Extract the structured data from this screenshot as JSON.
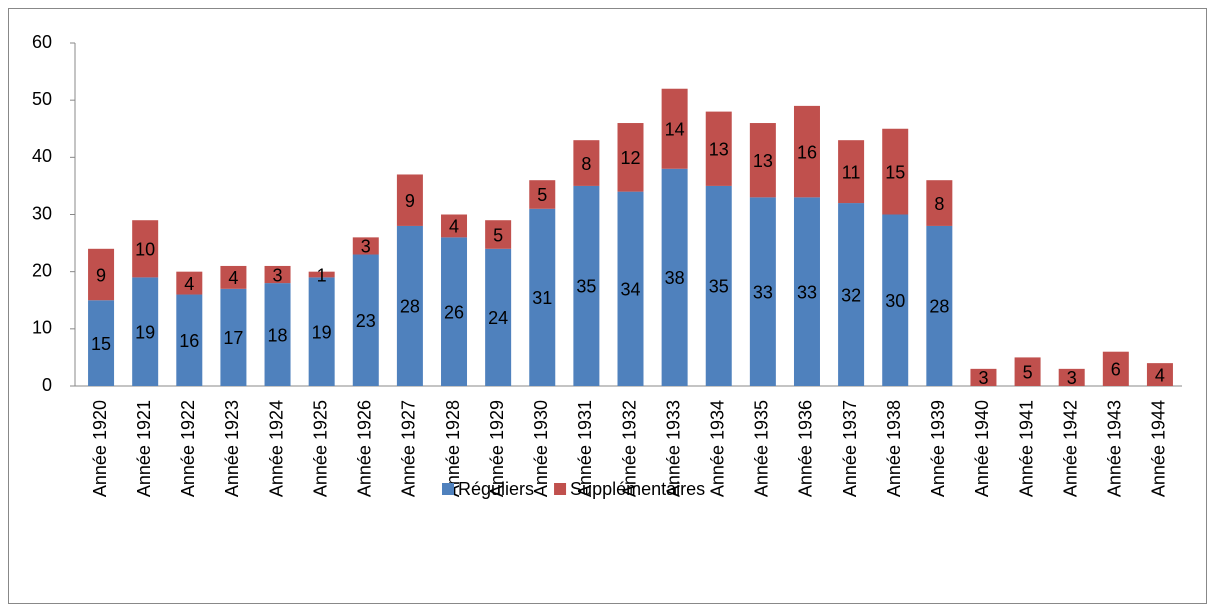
{
  "chart_data": {
    "type": "bar",
    "stacked": true,
    "categories": [
      "Année 1920",
      "Année 1921",
      "Année 1922",
      "Année 1923",
      "Année 1924",
      "Année 1925",
      "Année 1926",
      "Année 1927",
      "Année 1928",
      "Année 1929",
      "Année 1930",
      "Année 1931",
      "Année 1932",
      "Année 1933",
      "Année 1934",
      "Année 1935",
      "Année 1936",
      "Année 1937",
      "Année 1938",
      "Année 1939",
      "Année 1940",
      "Année 1941",
      "Année 1942",
      "Année 1943",
      "Année 1944"
    ],
    "series": [
      {
        "name": "Réguliers",
        "color": "#4f81bd",
        "values": [
          15,
          19,
          16,
          17,
          18,
          19,
          23,
          28,
          26,
          24,
          31,
          35,
          34,
          38,
          35,
          33,
          33,
          32,
          30,
          28,
          null,
          null,
          null,
          null,
          null
        ]
      },
      {
        "name": "Supplémentaires",
        "color": "#c0504d",
        "values": [
          9,
          10,
          4,
          4,
          3,
          1,
          3,
          9,
          4,
          5,
          5,
          8,
          12,
          14,
          13,
          13,
          16,
          11,
          15,
          8,
          3,
          5,
          3,
          6,
          4
        ]
      }
    ],
    "ylim": [
      0,
      60
    ],
    "yticks": [
      0,
      10,
      20,
      30,
      40,
      50,
      60
    ],
    "legend": "bottom"
  }
}
